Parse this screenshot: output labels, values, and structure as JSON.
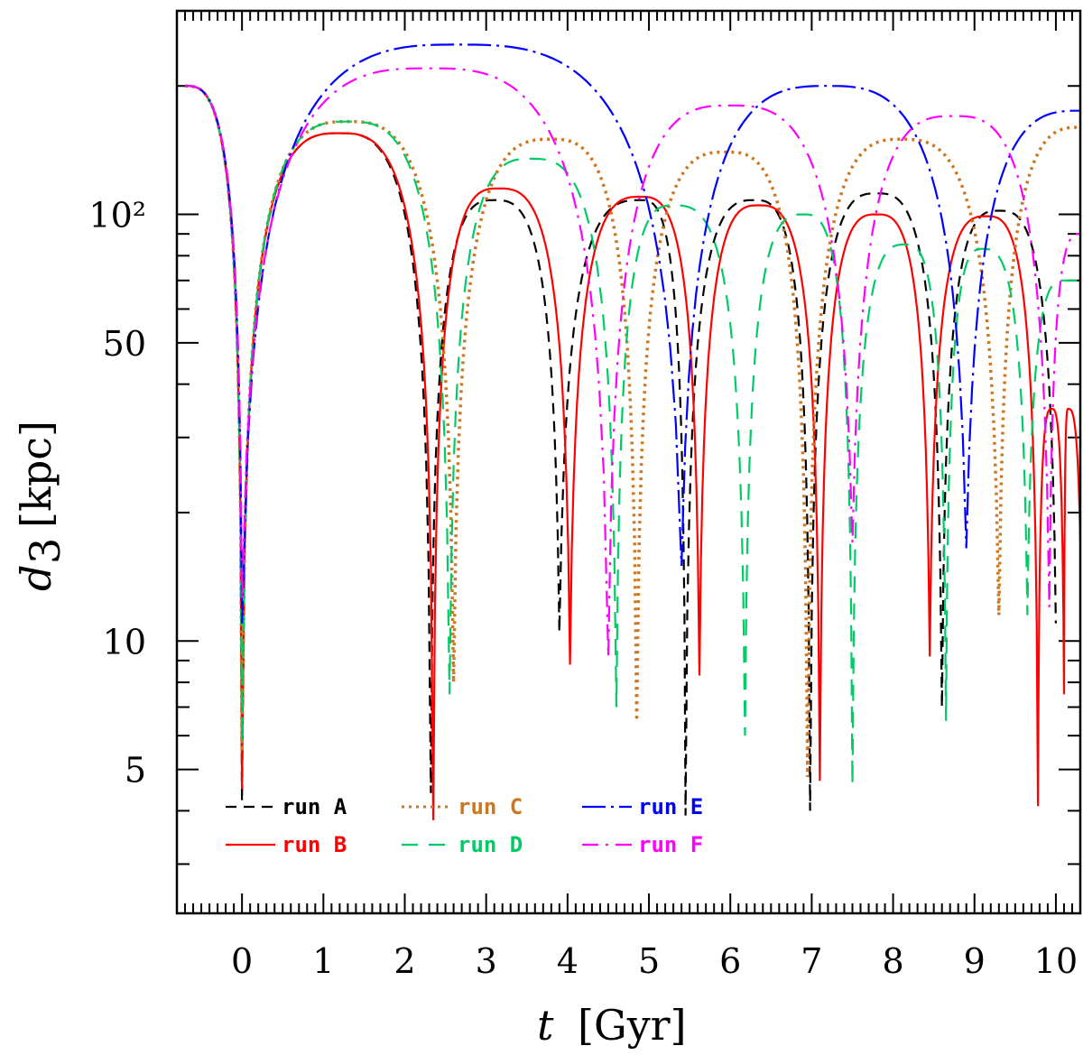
{
  "chart_data": {
    "type": "line",
    "title": "",
    "xlabel": "t",
    "xlabel_unit": "[Gyr]",
    "ylabel": "d",
    "ylabel_subscript": "3",
    "ylabel_unit": "[kpc]",
    "yscale": "log",
    "xlim": [
      -0.8,
      10.3
    ],
    "ylim": [
      2.3,
      300
    ],
    "x_ticks": [
      0,
      1,
      2,
      3,
      4,
      5,
      6,
      7,
      8,
      9,
      10
    ],
    "x_tick_labels": [
      "0",
      "1",
      "2",
      "3",
      "4",
      "5",
      "6",
      "7",
      "8",
      "9",
      "10"
    ],
    "y_ticks": [
      5,
      10,
      50,
      100
    ],
    "y_tick_labels": [
      "5",
      "10",
      "50",
      "10²"
    ],
    "legend_position": "bottom-left",
    "series": [
      {
        "name": "run A",
        "color": "#000000",
        "dash": "short-dash",
        "x": [
          -0.7,
          0,
          1.2,
          2.32,
          3.1,
          3.9,
          4.9,
          5.45,
          6.3,
          6.98,
          7.8,
          8.6,
          9.3,
          10.0
        ],
        "y": [
          200,
          4.2,
          155,
          4.4,
          108,
          10.5,
          108,
          3.9,
          108,
          4.0,
          112,
          7.0,
          102,
          11
        ]
      },
      {
        "name": "run B",
        "color": "#ff0000",
        "dash": "solid",
        "x": [
          -0.7,
          0,
          1.2,
          2.35,
          3.15,
          4.03,
          4.9,
          5.62,
          6.35,
          7.1,
          7.8,
          8.45,
          9.15,
          9.78,
          9.95,
          10.1,
          10.15,
          10.3
        ],
        "y": [
          200,
          4.5,
          155,
          3.8,
          115,
          8.8,
          110,
          8.3,
          105,
          4.7,
          100,
          9.2,
          99,
          4.1,
          35,
          7.5,
          35,
          17
        ]
      },
      {
        "name": "run C",
        "color": "#cc7722",
        "dash": "dotted",
        "x": [
          -0.7,
          0,
          1.3,
          2.6,
          3.8,
          4.85,
          5.95,
          6.95,
          8.1,
          9.3,
          10.3
        ],
        "y": [
          200,
          5.5,
          165,
          8.0,
          150,
          6.5,
          140,
          4.8,
          150,
          11.5,
          160
        ]
      },
      {
        "name": "run D",
        "color": "#00cc66",
        "dash": "long-dash",
        "x": [
          -0.7,
          0,
          1.3,
          2.55,
          3.55,
          4.6,
          5.3,
          6.18,
          6.9,
          7.5,
          8.15,
          8.65,
          9.1,
          9.65,
          10.1,
          10.3
        ],
        "y": [
          200,
          5.8,
          165,
          7.5,
          135,
          7.0,
          105,
          6.0,
          100,
          4.6,
          85,
          6.5,
          83,
          11.5,
          70,
          70
        ]
      },
      {
        "name": "run E",
        "color": "#0000ff",
        "dash": "dash-dot",
        "x": [
          -0.7,
          0,
          2.65,
          5.4,
          7.2,
          8.9,
          10.3
        ],
        "y": [
          200,
          11,
          250,
          15,
          200,
          16.5,
          175
        ]
      },
      {
        "name": "run F",
        "color": "#ff00ff",
        "dash": "dash-dot-long",
        "x": [
          -0.7,
          0,
          2.3,
          4.5,
          6.0,
          7.5,
          8.75,
          9.92,
          10.3
        ],
        "y": [
          200,
          12.5,
          220,
          9.2,
          180,
          17,
          170,
          12,
          90
        ]
      }
    ]
  }
}
